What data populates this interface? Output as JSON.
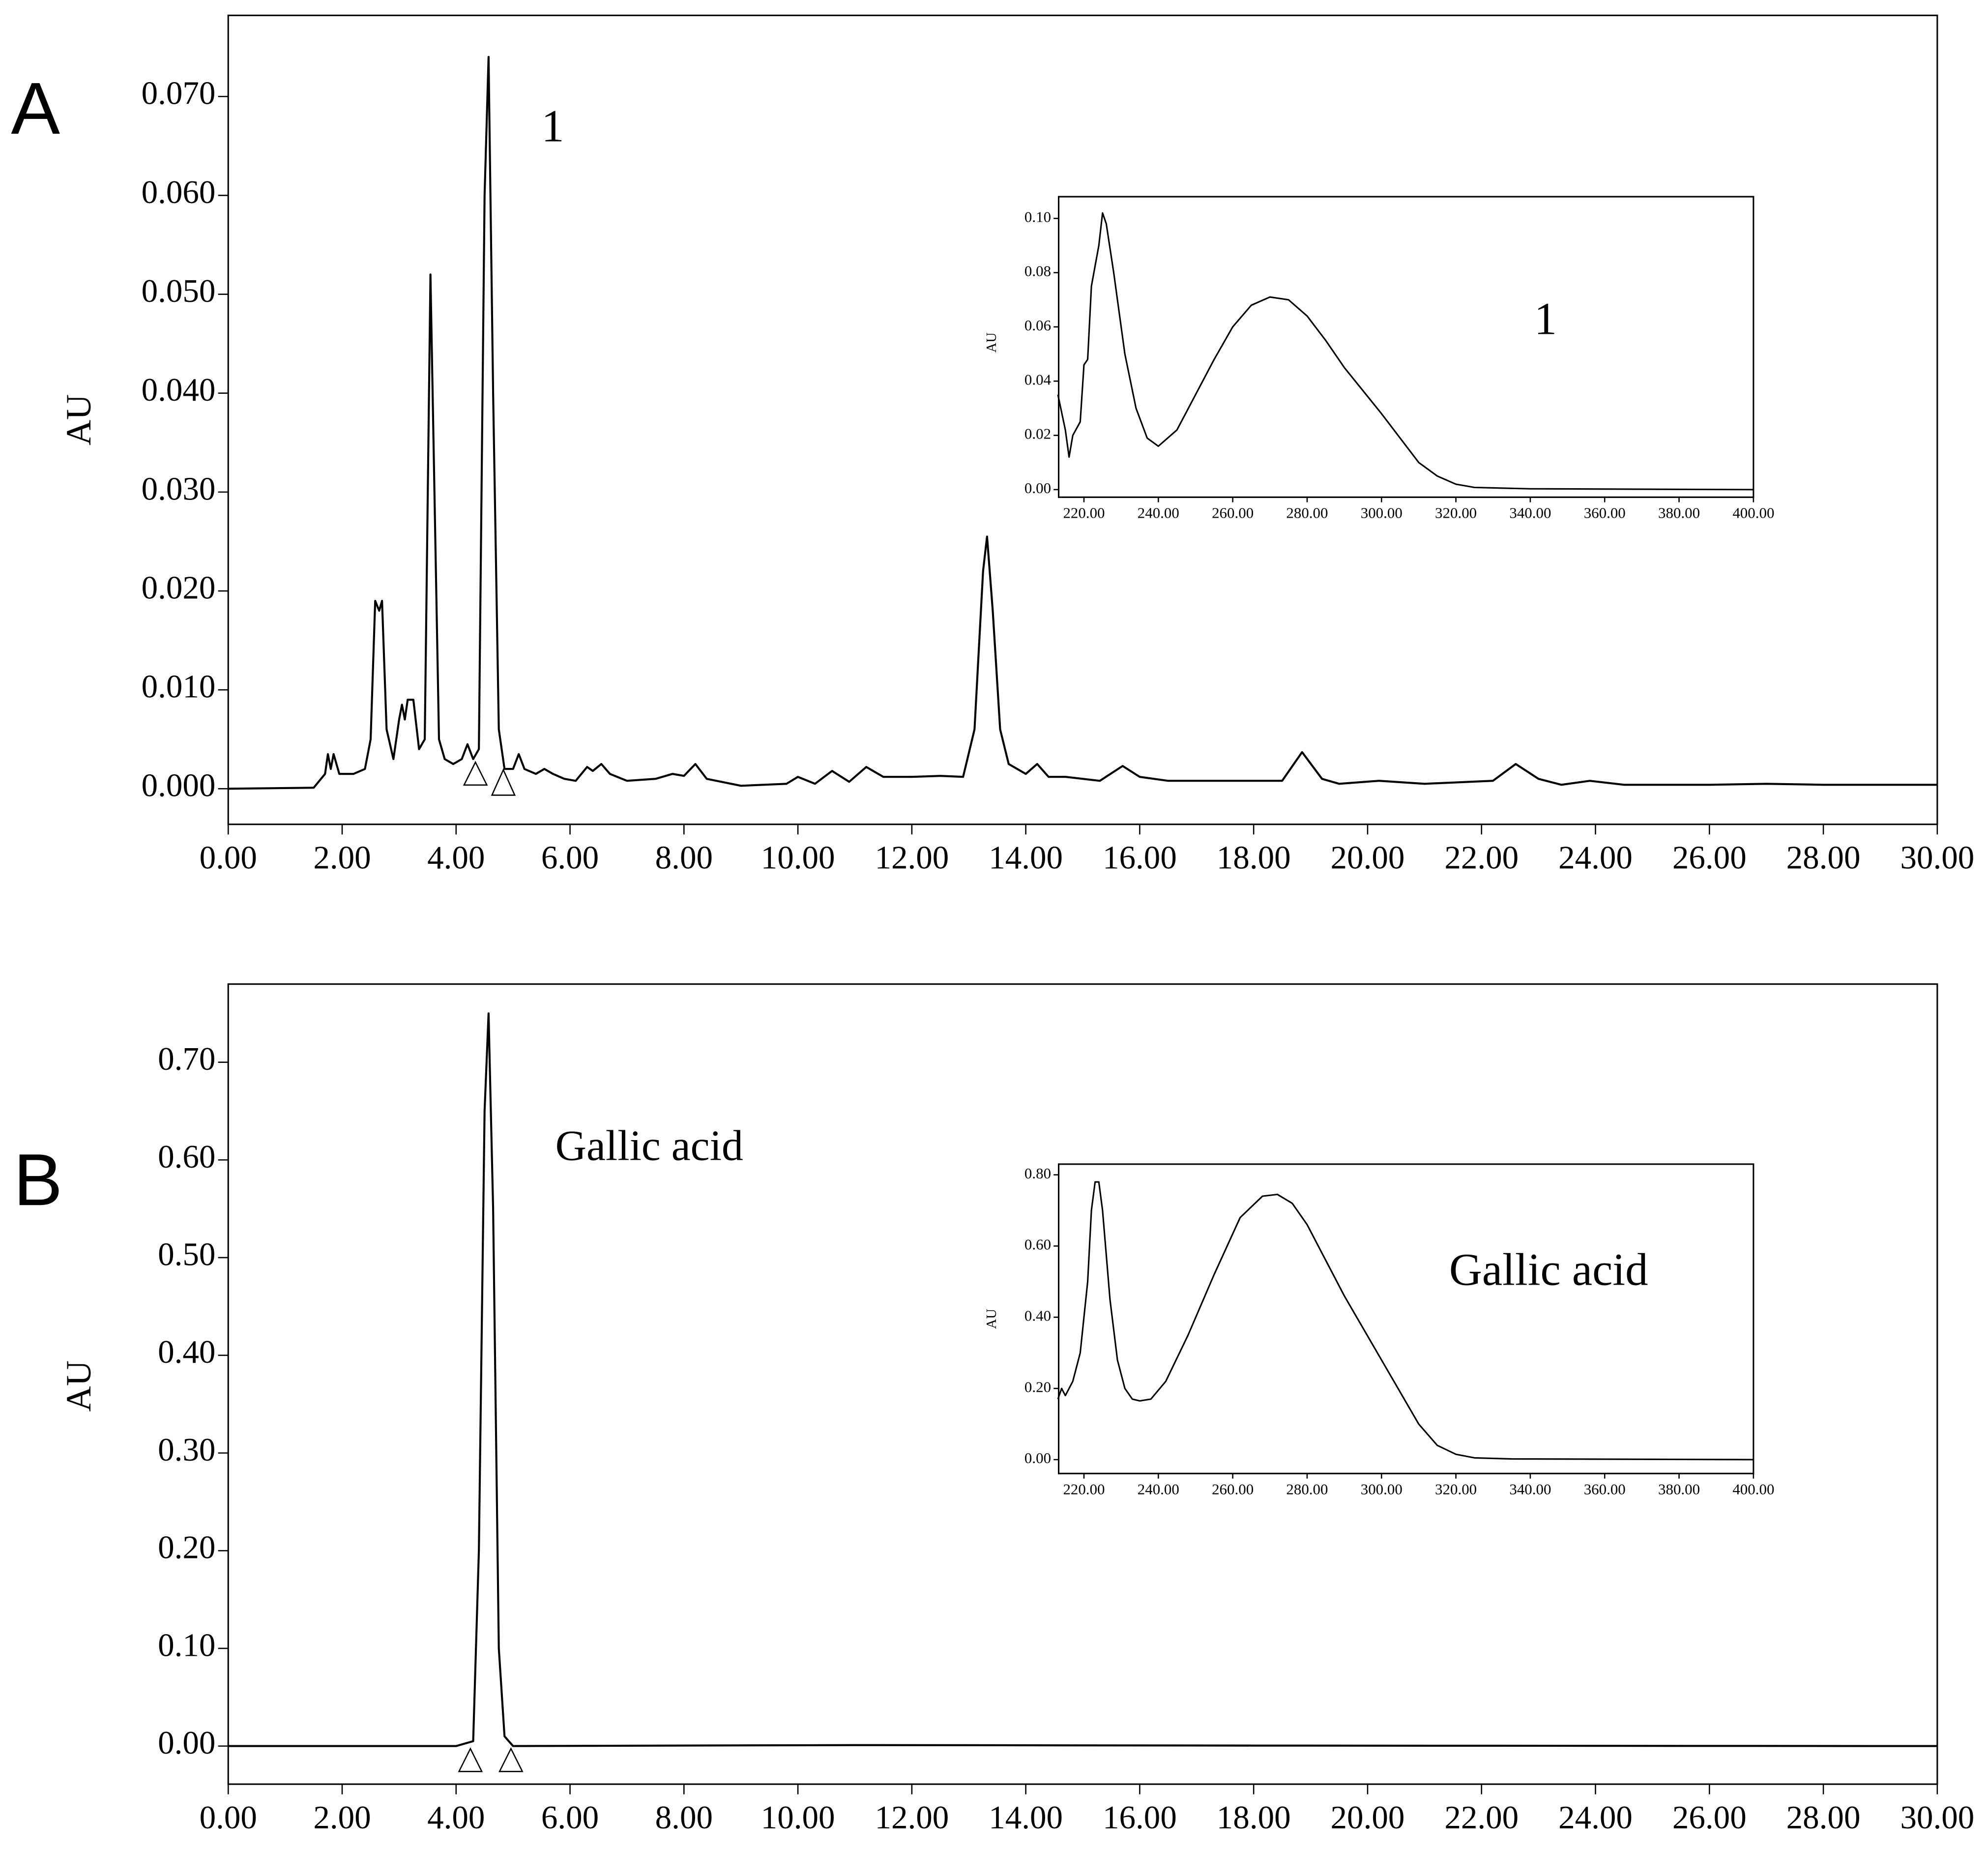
{
  "chart_data": [
    {
      "type": "line",
      "title": "A",
      "ylabel": "AU",
      "annotations": [
        "1"
      ],
      "color": "#000000",
      "x": [
        0,
        1.5,
        1.7,
        1.75,
        1.8,
        1.85,
        1.95,
        2.2,
        2.4,
        2.5,
        2.58,
        2.65,
        2.7,
        2.78,
        2.9,
        3.0,
        3.05,
        3.1,
        3.15,
        3.25,
        3.35,
        3.45,
        3.55,
        3.62,
        3.7,
        3.8,
        3.95,
        4.1,
        4.2,
        4.3,
        4.4,
        4.5,
        4.57,
        4.65,
        4.75,
        4.85,
        5.0,
        5.1,
        5.2,
        5.4,
        5.55,
        5.7,
        5.9,
        6.1,
        6.3,
        6.4,
        6.55,
        6.7,
        7.0,
        7.5,
        7.8,
        8.0,
        8.2,
        8.4,
        9.0,
        9.8,
        10.0,
        10.3,
        10.6,
        10.9,
        11.2,
        11.5,
        12.0,
        12.5,
        12.9,
        13.1,
        13.25,
        13.32,
        13.42,
        13.55,
        13.7,
        14.0,
        14.2,
        14.4,
        14.7,
        15.3,
        15.7,
        16.0,
        16.5,
        17.5,
        18.5,
        18.85,
        19.2,
        19.5,
        20.2,
        21,
        22.2,
        22.6,
        23.0,
        23.4,
        23.9,
        24.5,
        26,
        27,
        28,
        30
      ],
      "values": [
        0,
        0.0001,
        0.0015,
        0.0035,
        0.002,
        0.0035,
        0.0015,
        0.0015,
        0.002,
        0.005,
        0.019,
        0.018,
        0.019,
        0.006,
        0.003,
        0.007,
        0.0085,
        0.007,
        0.009,
        0.009,
        0.004,
        0.005,
        0.052,
        0.03,
        0.005,
        0.003,
        0.0025,
        0.003,
        0.0045,
        0.003,
        0.004,
        0.06,
        0.074,
        0.04,
        0.006,
        0.002,
        0.002,
        0.0035,
        0.002,
        0.0015,
        0.002,
        0.0015,
        0.001,
        0.0008,
        0.0022,
        0.0018,
        0.0025,
        0.0015,
        0.0008,
        0.001,
        0.0015,
        0.0013,
        0.0025,
        0.001,
        0.0003,
        0.0005,
        0.0012,
        0.0005,
        0.0018,
        0.0007,
        0.0022,
        0.0012,
        0.0012,
        0.0013,
        0.0012,
        0.006,
        0.022,
        0.0255,
        0.018,
        0.006,
        0.0025,
        0.0015,
        0.0025,
        0.0012,
        0.0012,
        0.0008,
        0.0023,
        0.0012,
        0.0008,
        0.0008,
        0.0008,
        0.0037,
        0.001,
        0.0005,
        0.0008,
        0.0005,
        0.0008,
        0.0025,
        0.001,
        0.0004,
        0.0008,
        0.0004,
        0.0004,
        0.0005,
        0.0004,
        0.0004
      ],
      "xlim": [
        0,
        30
      ],
      "xticks": [
        {
          "value": 0,
          "label": "0.00"
        },
        {
          "value": 2,
          "label": "2.00"
        },
        {
          "value": 4,
          "label": "4.00"
        },
        {
          "value": 6,
          "label": "6.00"
        },
        {
          "value": 8,
          "label": "8.00"
        },
        {
          "value": 10,
          "label": "10.00"
        },
        {
          "value": 12,
          "label": "12.00"
        },
        {
          "value": 14,
          "label": "14.00"
        },
        {
          "value": 16,
          "label": "16.00"
        },
        {
          "value": 18,
          "label": "18.00"
        },
        {
          "value": 20,
          "label": "20.00"
        },
        {
          "value": 22,
          "label": "22.00"
        },
        {
          "value": 24,
          "label": "24.00"
        },
        {
          "value": 26,
          "label": "26.00"
        },
        {
          "value": 28,
          "label": "28.00"
        },
        {
          "value": 30,
          "label": "30.00"
        }
      ],
      "ylim": [
        -0.0036,
        0.0782
      ],
      "yticks": [
        {
          "value": 0,
          "label": "0.000"
        },
        {
          "value": 0.01,
          "label": "0.010"
        },
        {
          "value": 0.02,
          "label": "0.020"
        },
        {
          "value": 0.03,
          "label": "0.030"
        },
        {
          "value": 0.04,
          "label": "0.040"
        },
        {
          "value": 0.05,
          "label": "0.050"
        },
        {
          "value": 0.06,
          "label": "0.060"
        },
        {
          "value": 0.07,
          "label": "0.070"
        }
      ]
    },
    {
      "type": "line",
      "ylabel": "AU",
      "annotations": [
        "1"
      ],
      "color": "#000000",
      "x": [
        213,
        215,
        216,
        217,
        219,
        220,
        221,
        222,
        224,
        225,
        226,
        228,
        231,
        234,
        237,
        240,
        245,
        250,
        255,
        260,
        265,
        270,
        275,
        280,
        285,
        290,
        300,
        310,
        315,
        320,
        325,
        340,
        400
      ],
      "values": [
        0.035,
        0.022,
        0.012,
        0.02,
        0.025,
        0.046,
        0.048,
        0.075,
        0.09,
        0.102,
        0.098,
        0.08,
        0.05,
        0.03,
        0.019,
        0.016,
        0.022,
        0.035,
        0.048,
        0.06,
        0.068,
        0.071,
        0.07,
        0.064,
        0.055,
        0.045,
        0.028,
        0.01,
        0.005,
        0.002,
        0.0008,
        0.0003,
        0
      ],
      "xlim": [
        213.2,
        400
      ],
      "xticks": [
        {
          "value": 220,
          "label": "220.00"
        },
        {
          "value": 240,
          "label": "240.00"
        },
        {
          "value": 260,
          "label": "260.00"
        },
        {
          "value": 280,
          "label": "280.00"
        },
        {
          "value": 300,
          "label": "300.00"
        },
        {
          "value": 320,
          "label": "320.00"
        },
        {
          "value": 340,
          "label": "340.00"
        },
        {
          "value": 360,
          "label": "360.00"
        },
        {
          "value": 380,
          "label": "380.00"
        },
        {
          "value": 400,
          "label": "400.00"
        }
      ],
      "ylim": [
        -0.0028,
        0.108
      ],
      "yticks": [
        {
          "value": 0,
          "label": "0.00"
        },
        {
          "value": 0.02,
          "label": "0.02"
        },
        {
          "value": 0.04,
          "label": "0.04"
        },
        {
          "value": 0.06,
          "label": "0.06"
        },
        {
          "value": 0.08,
          "label": "0.08"
        },
        {
          "value": 0.1,
          "label": "0.10"
        }
      ]
    },
    {
      "type": "line",
      "title": "B",
      "ylabel": "AU",
      "annotations": [
        "Gallic acid"
      ],
      "color": "#000000",
      "x": [
        0,
        4.0,
        4.3,
        4.4,
        4.5,
        4.57,
        4.65,
        4.75,
        4.85,
        5.0,
        11,
        18,
        30
      ],
      "values": [
        0,
        0,
        0.005,
        0.2,
        0.65,
        0.75,
        0.55,
        0.1,
        0.01,
        0,
        0.001,
        0.0005,
        0
      ],
      "xlim": [
        0,
        30
      ],
      "xticks": [
        {
          "value": 0,
          "label": "0.00"
        },
        {
          "value": 2,
          "label": "2.00"
        },
        {
          "value": 4,
          "label": "4.00"
        },
        {
          "value": 6,
          "label": "6.00"
        },
        {
          "value": 8,
          "label": "8.00"
        },
        {
          "value": 10,
          "label": "10.00"
        },
        {
          "value": 12,
          "label": "12.00"
        },
        {
          "value": 14,
          "label": "14.00"
        },
        {
          "value": 16,
          "label": "16.00"
        },
        {
          "value": 18,
          "label": "18.00"
        },
        {
          "value": 20,
          "label": "20.00"
        },
        {
          "value": 22,
          "label": "22.00"
        },
        {
          "value": 24,
          "label": "24.00"
        },
        {
          "value": 26,
          "label": "26.00"
        },
        {
          "value": 28,
          "label": "28.00"
        },
        {
          "value": 30,
          "label": "30.00"
        }
      ],
      "ylim": [
        -0.039,
        0.78
      ],
      "yticks": [
        {
          "value": 0,
          "label": "0.00"
        },
        {
          "value": 0.1,
          "label": "0.10"
        },
        {
          "value": 0.2,
          "label": "0.20"
        },
        {
          "value": 0.3,
          "label": "0.30"
        },
        {
          "value": 0.4,
          "label": "0.40"
        },
        {
          "value": 0.5,
          "label": "0.50"
        },
        {
          "value": 0.6,
          "label": "0.60"
        },
        {
          "value": 0.7,
          "label": "0.70"
        }
      ]
    },
    {
      "type": "line",
      "ylabel": "AU",
      "annotations": [
        "Gallic acid"
      ],
      "color": "#000000",
      "x": [
        213,
        214,
        215,
        217,
        219,
        221,
        222,
        223,
        224,
        225,
        227,
        229,
        231,
        233,
        235,
        238,
        242,
        248,
        255,
        262,
        268,
        272,
        276,
        280,
        290,
        300,
        310,
        315,
        320,
        325,
        335,
        400
      ],
      "values": [
        0.17,
        0.2,
        0.18,
        0.22,
        0.3,
        0.5,
        0.7,
        0.78,
        0.78,
        0.7,
        0.45,
        0.28,
        0.2,
        0.17,
        0.165,
        0.17,
        0.22,
        0.35,
        0.52,
        0.68,
        0.74,
        0.745,
        0.72,
        0.66,
        0.46,
        0.28,
        0.1,
        0.04,
        0.015,
        0.005,
        0.002,
        0
      ],
      "xlim": [
        213.2,
        400
      ],
      "xticks": [
        {
          "value": 220,
          "label": "220.00"
        },
        {
          "value": 240,
          "label": "240.00"
        },
        {
          "value": 260,
          "label": "260.00"
        },
        {
          "value": 280,
          "label": "280.00"
        },
        {
          "value": 300,
          "label": "300.00"
        },
        {
          "value": 320,
          "label": "320.00"
        },
        {
          "value": 340,
          "label": "340.00"
        },
        {
          "value": 360,
          "label": "360.00"
        },
        {
          "value": 380,
          "label": "380.00"
        },
        {
          "value": 400,
          "label": "400.00"
        }
      ],
      "ylim": [
        -0.039,
        0.83
      ],
      "yticks": [
        {
          "value": 0,
          "label": "0.00"
        },
        {
          "value": 0.2,
          "label": "0.20"
        },
        {
          "value": 0.4,
          "label": "0.40"
        },
        {
          "value": 0.6,
          "label": "0.60"
        },
        {
          "value": 0.8,
          "label": "0.80"
        }
      ]
    }
  ]
}
